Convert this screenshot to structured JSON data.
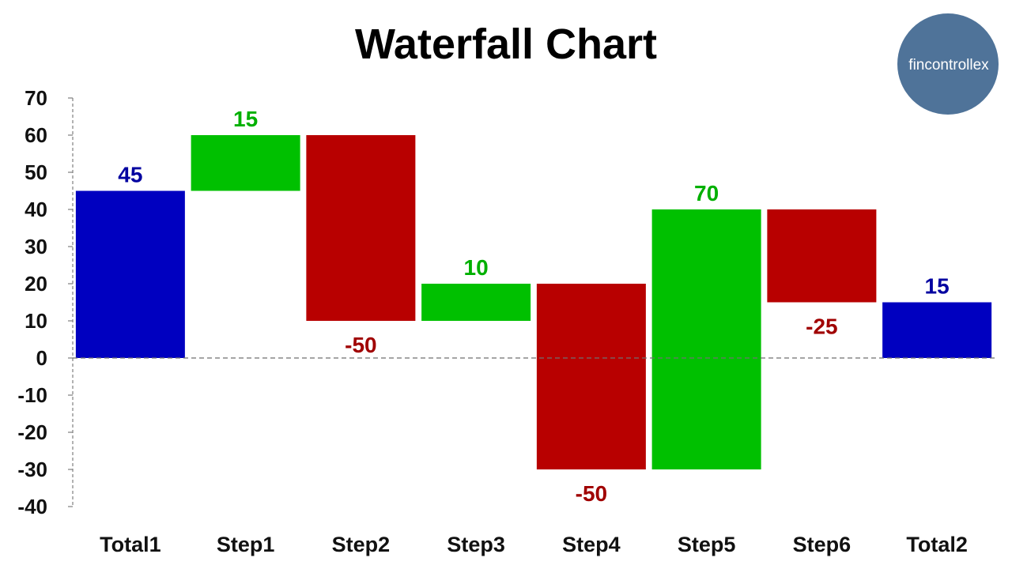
{
  "chart_data": {
    "type": "bar",
    "subtype": "waterfall",
    "title": "Waterfall Chart",
    "xlabel": "",
    "ylabel": "",
    "ylim": [
      -40,
      70
    ],
    "yticks": [
      70,
      60,
      50,
      40,
      30,
      20,
      10,
      0,
      -10,
      -20,
      -30,
      -40
    ],
    "grid": false,
    "legend": "none",
    "zero_line": "dashed",
    "categories": [
      "Total1",
      "Step1",
      "Step2",
      "Step3",
      "Step4",
      "Step5",
      "Step6",
      "Total2"
    ],
    "bars": [
      {
        "category": "Total1",
        "kind": "total",
        "start": 0,
        "end": 45,
        "label": "45"
      },
      {
        "category": "Step1",
        "kind": "increase",
        "start": 45,
        "end": 60,
        "label": "15"
      },
      {
        "category": "Step2",
        "kind": "decrease",
        "start": 60,
        "end": 10,
        "label": "-50"
      },
      {
        "category": "Step3",
        "kind": "increase",
        "start": 10,
        "end": 20,
        "label": "10"
      },
      {
        "category": "Step4",
        "kind": "decrease",
        "start": 20,
        "end": -30,
        "label": "-50"
      },
      {
        "category": "Step5",
        "kind": "increase",
        "start": -30,
        "end": 40,
        "label": "70"
      },
      {
        "category": "Step6",
        "kind": "decrease",
        "start": 40,
        "end": 15,
        "label": "-25"
      },
      {
        "category": "Total2",
        "kind": "total",
        "start": 0,
        "end": 15,
        "label": "15"
      }
    ],
    "colors": {
      "total": "#0000C0",
      "increase": "#00C000",
      "decrease": "#B80000",
      "total_label": "#0000A0",
      "increase_label": "#00B000",
      "decrease_label": "#A00000",
      "axis": "#7f7f7f"
    }
  },
  "logo": {
    "text": "fincontrollex",
    "color": "#4F7399",
    "icon": "fincontrollex-logo-circle"
  }
}
